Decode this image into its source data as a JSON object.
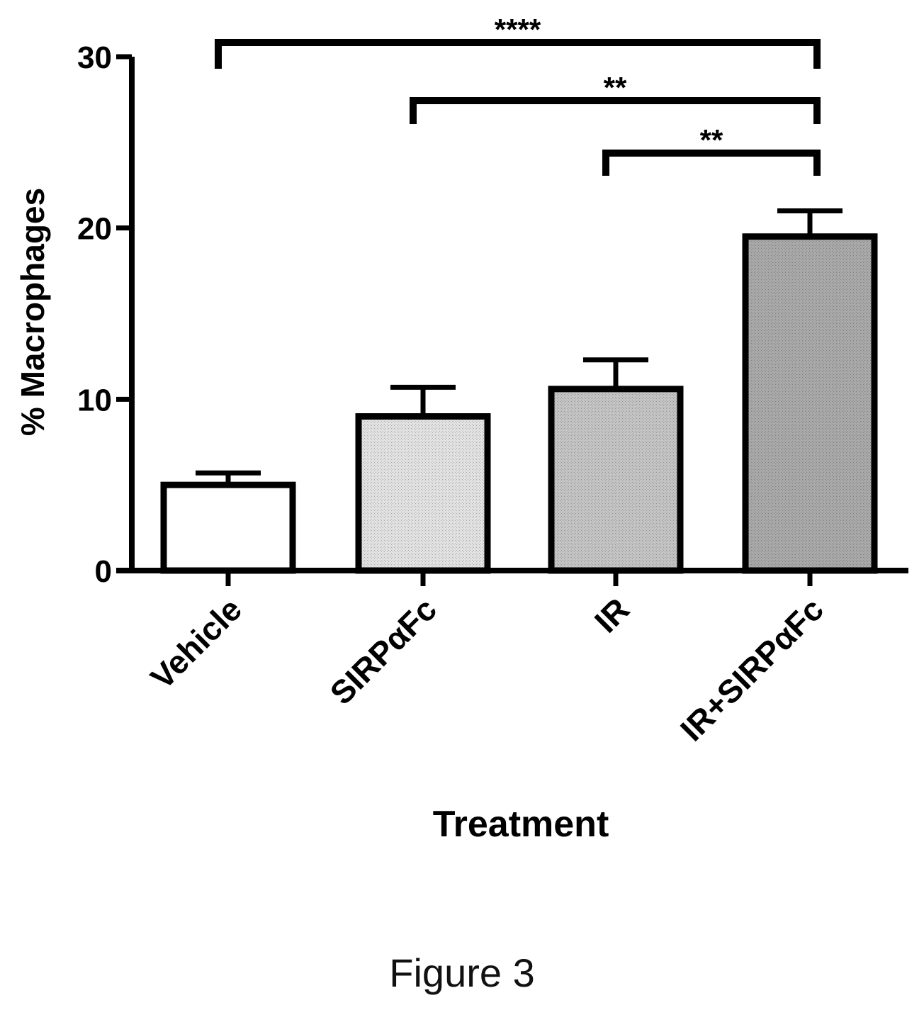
{
  "chart_data": {
    "type": "bar",
    "categories": [
      "Vehicle",
      "SIRPαFc",
      "IR",
      "IR+SIRPαFc"
    ],
    "values": [
      5.0,
      9.0,
      10.6,
      19.5
    ],
    "errors": [
      0.7,
      1.7,
      1.7,
      1.5
    ],
    "xlabel": "Treatment",
    "ylabel": "% Macrophages",
    "ylim": [
      0,
      30
    ],
    "yticks": [
      0,
      10,
      20,
      30
    ],
    "grid": false,
    "legend": "none",
    "bar_fills": [
      "#ffffff",
      "#e2e2e2",
      "#c4c4c4",
      "#a9a9a9"
    ],
    "significance": [
      {
        "from": 0,
        "to": 3,
        "label": "****"
      },
      {
        "from": 1,
        "to": 3,
        "label": "**"
      },
      {
        "from": 2,
        "to": 3,
        "label": "**"
      }
    ]
  },
  "caption": "Figure 3"
}
